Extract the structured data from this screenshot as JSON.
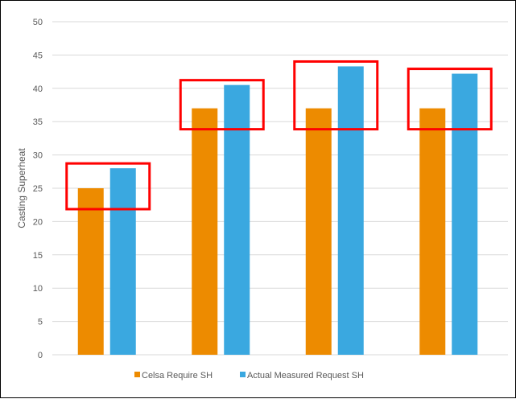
{
  "chart_data": {
    "type": "bar",
    "title": "",
    "xlabel": "",
    "ylabel": "Casting Superheat",
    "ylim": [
      0,
      50
    ],
    "yticks": [
      0,
      5,
      10,
      15,
      20,
      25,
      30,
      35,
      40,
      45,
      50
    ],
    "categories": [
      "",
      "",
      "",
      ""
    ],
    "series": [
      {
        "name": "Celsa Require SH",
        "color": "#ED8B00",
        "values": [
          25,
          37,
          37,
          37
        ]
      },
      {
        "name": "Actual Measured Request SH",
        "color": "#3AA8E0",
        "values": [
          28,
          40.5,
          43.3,
          42.2
        ]
      }
    ],
    "grid": true,
    "legend_position": "bottom",
    "annotations": {
      "type": "highlight-boxes",
      "color": "#FF0000",
      "count": 4
    }
  }
}
